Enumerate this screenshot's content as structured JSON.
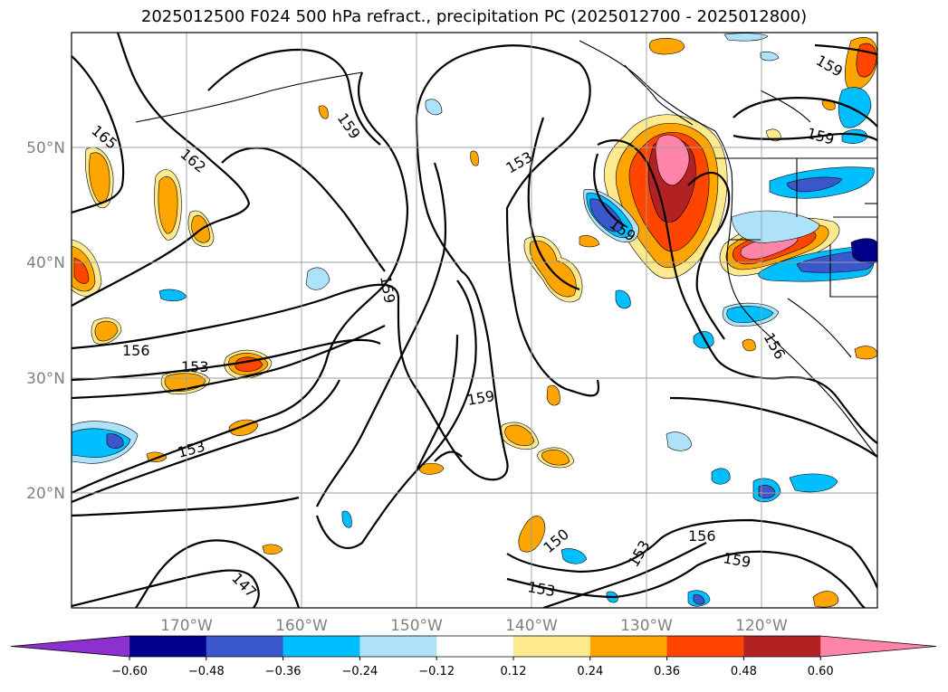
{
  "title": "2025012500 F024 500 hPa refract., precipitation PC (2025012700 - 2025012800)",
  "lat_labels": [
    "50°N",
    "40°N",
    "30°N",
    "20°N"
  ],
  "lon_labels": [
    "170°W",
    "160°W",
    "150°W",
    "140°W",
    "130°W",
    "120°W"
  ],
  "contour_labels": [
    "165",
    "162",
    "159",
    "153",
    "159",
    "159",
    "156",
    "153",
    "153",
    "159",
    "150",
    "153",
    "156",
    "159",
    "153",
    "147",
    "156",
    "159"
  ],
  "colorbar": {
    "ticks": [
      "−0.60",
      "−0.48",
      "−0.36",
      "−0.24",
      "−0.12",
      "0.12",
      "0.24",
      "0.36",
      "0.48",
      "0.60"
    ],
    "colors": [
      "#8e2fd0",
      "#00008b",
      "#3a57cc",
      "#00bfff",
      "#aee2fa",
      "#ffffff",
      "#fde98e",
      "#ffa500",
      "#ff4500",
      "#b22222",
      "#ff85a8"
    ]
  }
}
